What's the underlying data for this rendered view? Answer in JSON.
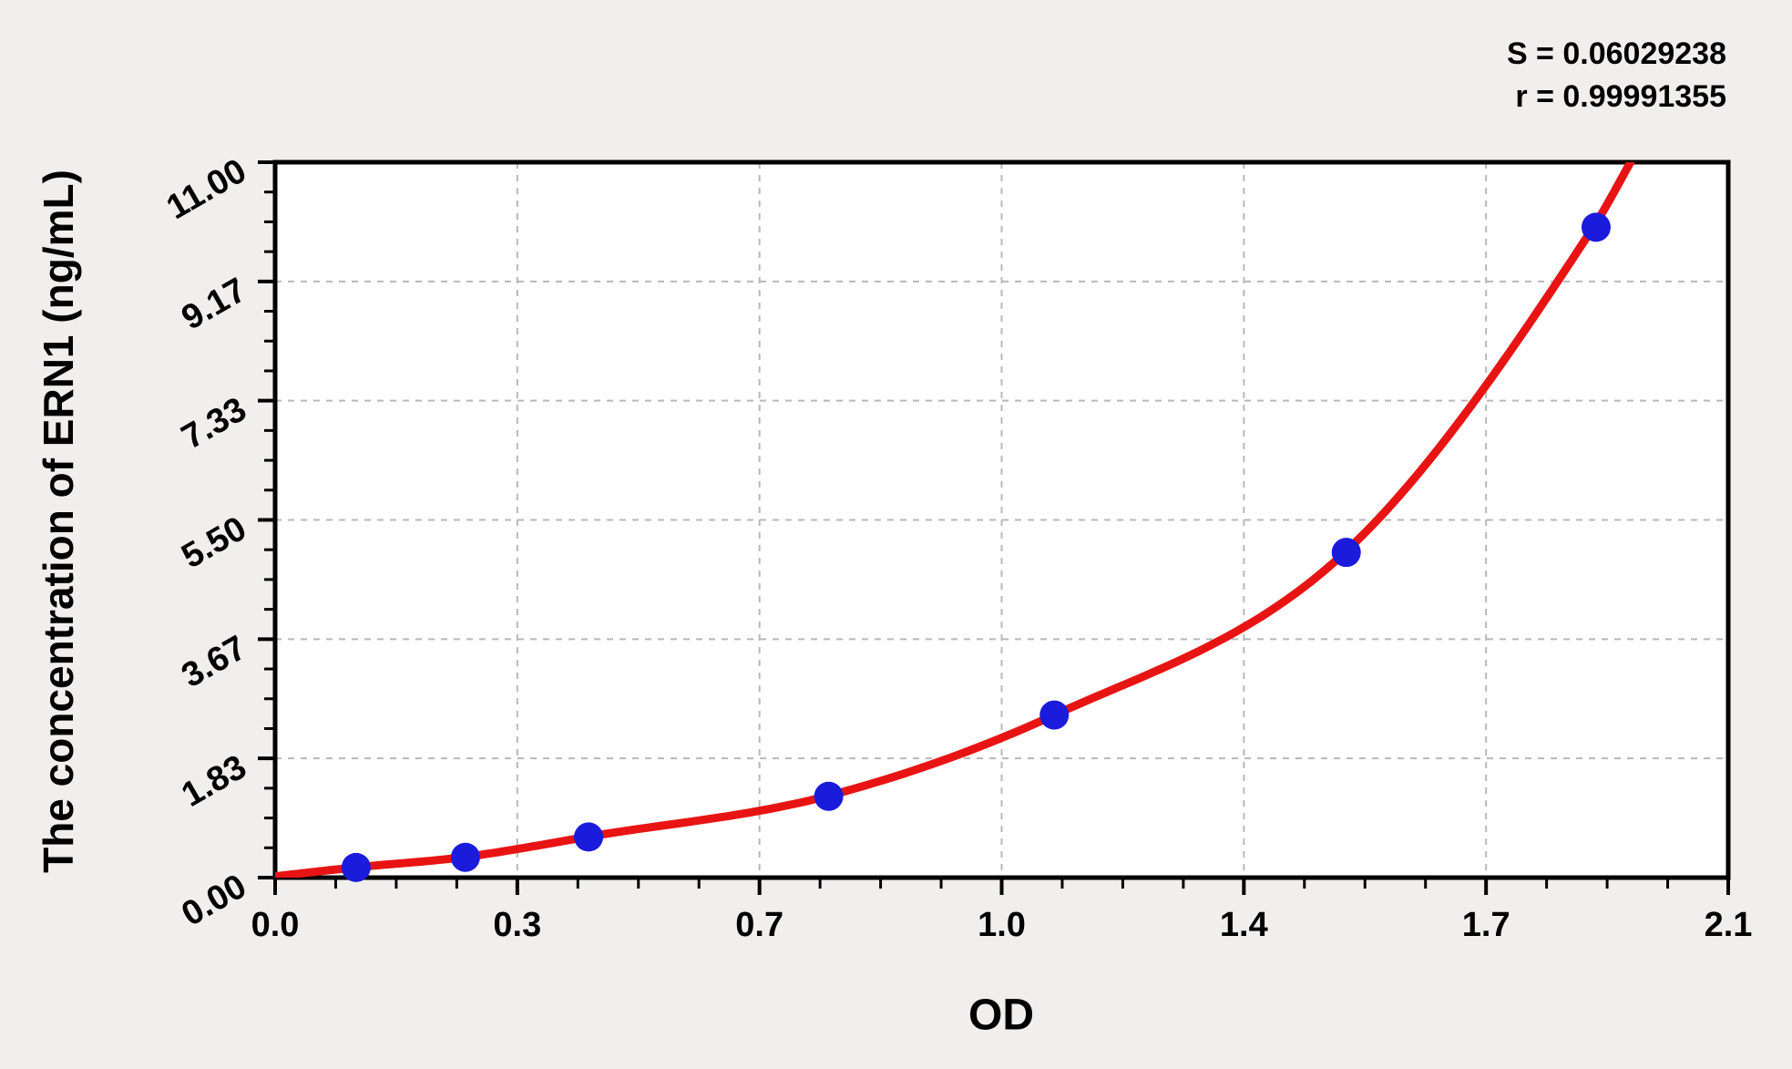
{
  "annotations": {
    "s_line": "S = 0.06029238",
    "r_line": "r = 0.99991355"
  },
  "chart_data": {
    "type": "scatter",
    "title": "",
    "xlabel": "OD",
    "ylabel": "The concentration of ERN1 (ng/mL)",
    "xlim": [
      0,
      2.1
    ],
    "ylim": [
      0,
      11
    ],
    "x_major_ticks": [
      0,
      0.35,
      0.7,
      1.05,
      1.4,
      1.75,
      2.1
    ],
    "x_tick_labels": [
      "0.0",
      "0.3",
      "0.7",
      "1.0",
      "1.4",
      "1.7",
      "2.1"
    ],
    "y_major_ticks": [
      0,
      1.8333,
      3.6667,
      5.5,
      7.3333,
      9.1667,
      11
    ],
    "y_tick_labels": [
      "0.00",
      "1.83",
      "3.67",
      "5.50",
      "7.33",
      "9.17",
      "11.00"
    ],
    "x_minor_divisions": 4,
    "y_minor_divisions": 4,
    "grid": {
      "show": true,
      "style": "dashed",
      "on_ticks": "major"
    },
    "legend_position": "none",
    "stats": {
      "S": "0.06029238",
      "r": "0.99991355"
    },
    "series": [
      {
        "name": "standard-points",
        "type": "scatter",
        "color": "#1b1bdb",
        "marker_radius": 16,
        "x": [
          0.117,
          0.275,
          0.453,
          0.8,
          1.126,
          1.548,
          1.909
        ],
        "y": [
          0.156,
          0.312,
          0.625,
          1.25,
          2.5,
          5.0,
          10.0
        ]
      },
      {
        "name": "fitted-curve",
        "type": "line",
        "color": "#e81414",
        "stroke_width": 9,
        "x": [
          0.0,
          0.117,
          0.275,
          0.453,
          0.8,
          1.126,
          1.548,
          1.905,
          1.965
        ],
        "y": [
          0.02,
          0.158,
          0.318,
          0.63,
          1.26,
          2.5,
          5.02,
          10.0,
          11.12
        ]
      }
    ]
  },
  "colors": {
    "canvas_bg": "#f0efed",
    "plot_bg": "#ffffff",
    "grid": "#b8b8b8",
    "axis": "#000000",
    "point": "#1b1bdb",
    "curve": "#e81414",
    "text": "#000000"
  }
}
